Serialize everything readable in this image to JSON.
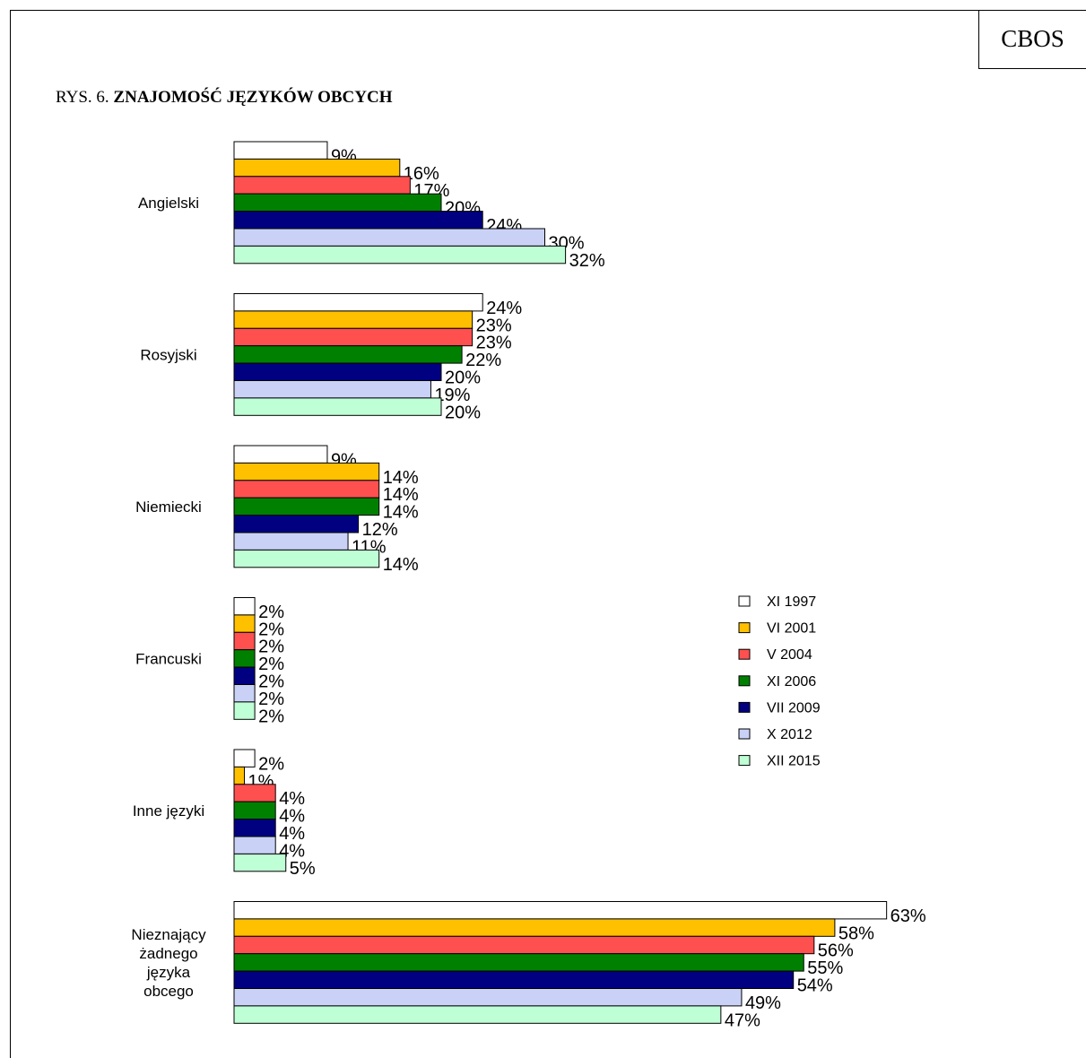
{
  "header": {
    "badge": "CBOS",
    "title_prefix": "RYS. 6.",
    "title_bold": "ZNAJOMOŚĆ JĘZYKÓW OBCYCH"
  },
  "chart_data": {
    "type": "bar",
    "orientation": "horizontal",
    "title": "RYS. 6. ZNAJOMOŚĆ JĘZYKÓW OBCYCH",
    "categories": [
      [
        "Angielski"
      ],
      [
        "Rosyjski"
      ],
      [
        "Niemiecki"
      ],
      [
        "Francuski"
      ],
      [
        "Inne języki"
      ],
      [
        "Nieznający",
        "żadnego",
        "języka",
        "obcego"
      ]
    ],
    "value_suffix": "%",
    "legend_position": "right",
    "series": [
      {
        "name": "XI 1997",
        "color": "#ffffff",
        "values": [
          9,
          24,
          9,
          2,
          2,
          63
        ]
      },
      {
        "name": "VI 2001",
        "color": "#ffc000",
        "values": [
          16,
          23,
          14,
          2,
          1,
          58
        ]
      },
      {
        "name": "V 2004",
        "color": "#ff5050",
        "values": [
          17,
          23,
          14,
          2,
          4,
          56
        ]
      },
      {
        "name": "XI 2006",
        "color": "#008000",
        "values": [
          20,
          22,
          14,
          2,
          4,
          55
        ]
      },
      {
        "name": "VII 2009",
        "color": "#000080",
        "values": [
          24,
          20,
          12,
          2,
          4,
          54
        ]
      },
      {
        "name": "X 2012",
        "color": "#c9d2f6",
        "values": [
          30,
          19,
          11,
          2,
          4,
          49
        ]
      },
      {
        "name": "XII 2015",
        "color": "#bfffd5",
        "values": [
          32,
          20,
          14,
          2,
          5,
          47
        ]
      }
    ]
  }
}
